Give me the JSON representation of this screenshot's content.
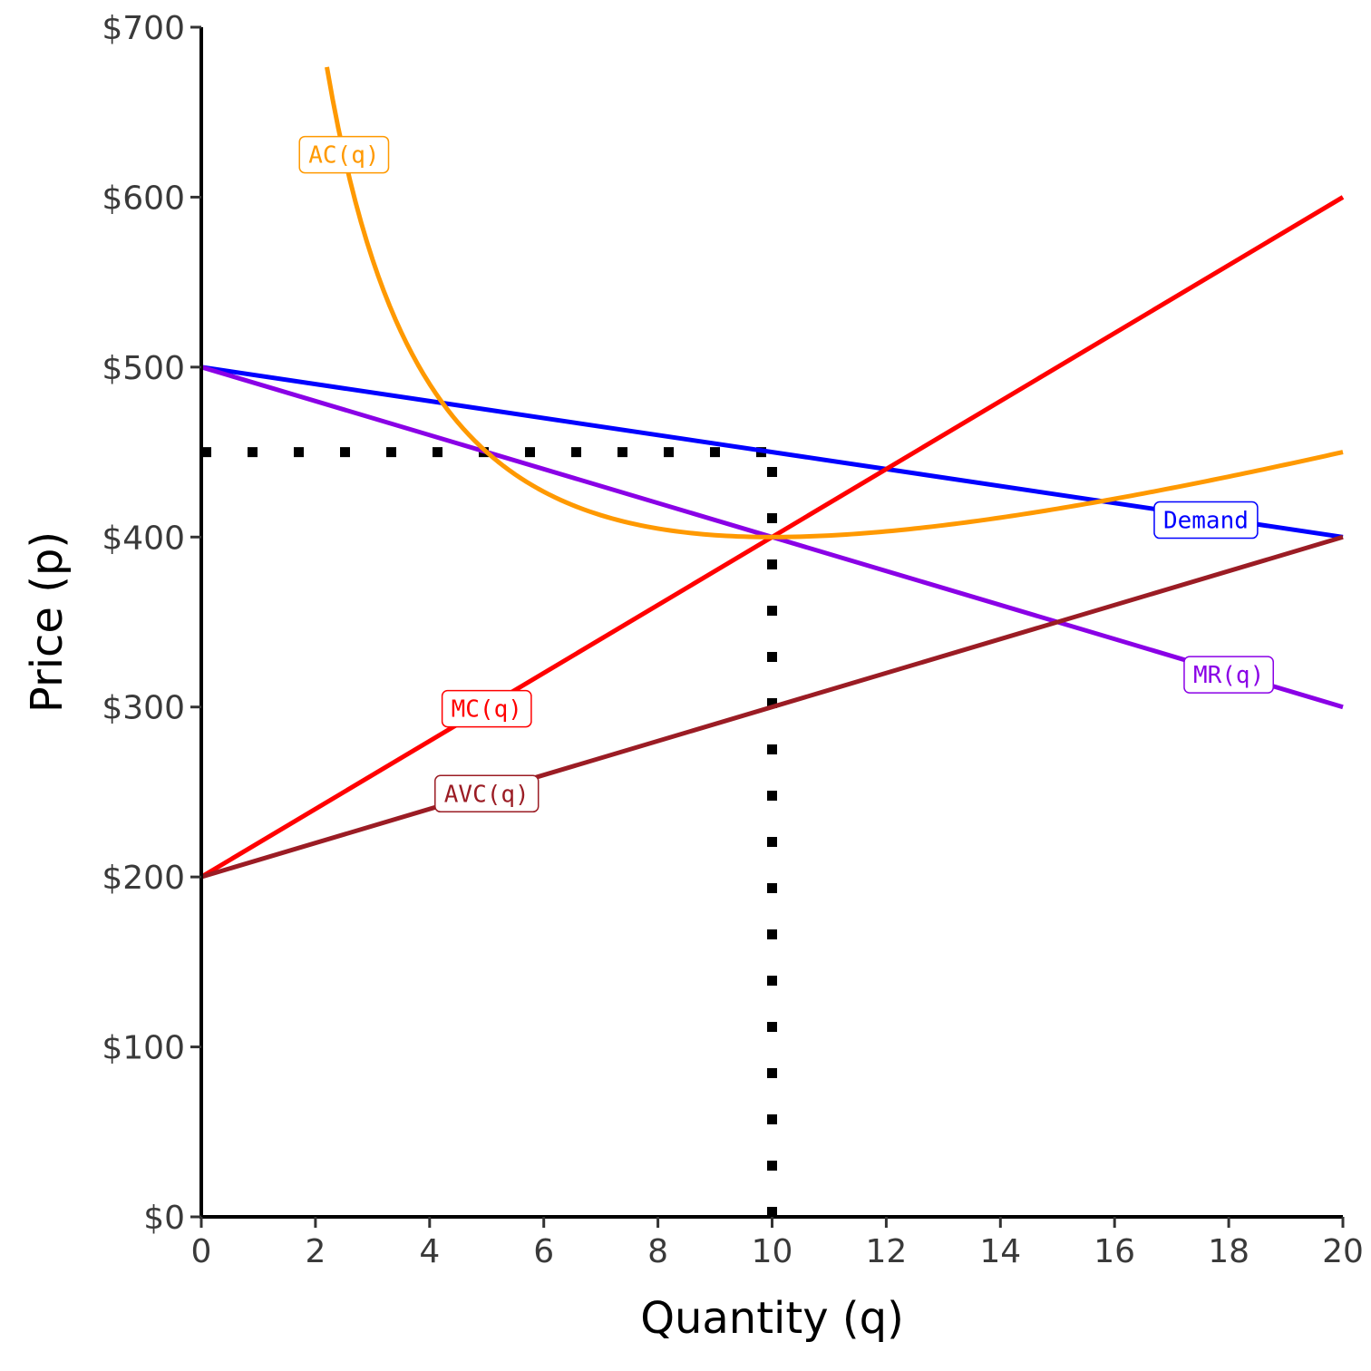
{
  "chart_data": {
    "type": "line",
    "xlabel": "Quantity (q)",
    "ylabel": "Price (p)",
    "xlim": [
      0,
      20
    ],
    "ylim": [
      0,
      700
    ],
    "x_ticks": [
      0,
      2,
      4,
      6,
      8,
      10,
      12,
      14,
      16,
      18,
      20
    ],
    "x_tick_labels": [
      "0",
      "2",
      "4",
      "6",
      "8",
      "10",
      "12",
      "14",
      "16",
      "18",
      "20"
    ],
    "y_ticks": [
      0,
      100,
      200,
      300,
      400,
      500,
      600,
      700
    ],
    "y_tick_labels": [
      "$0",
      "$100",
      "$200",
      "$300",
      "$400",
      "$500",
      "$600",
      "$700"
    ],
    "grid": false,
    "series": [
      {
        "name": "Demand",
        "color": "#0000ff",
        "x": [
          0,
          20
        ],
        "y": [
          500,
          400
        ],
        "label_at": [
          17.6,
          410
        ]
      },
      {
        "name": "MR(q)",
        "color": "#8a00e6",
        "x": [
          0,
          20
        ],
        "y": [
          500,
          300
        ],
        "label_at": [
          18,
          319
        ]
      },
      {
        "name": "MC(q)",
        "color": "#ff0000",
        "x": [
          0,
          20
        ],
        "y": [
          200,
          600
        ],
        "label_at": [
          5,
          299
        ]
      },
      {
        "name": "AVC(q)",
        "color": "#9b1c24",
        "x": [
          0,
          20
        ],
        "y": [
          200,
          400
        ],
        "label_at": [
          5,
          249
        ]
      },
      {
        "name": "AC(q)",
        "color": "#ff9900",
        "x": [
          2.2,
          2.5,
          3,
          3.5,
          4,
          4.5,
          5,
          6,
          7,
          8,
          9,
          10,
          11,
          12,
          13,
          14,
          15,
          16,
          17,
          18,
          19,
          20
        ],
        "y": [
          675.5,
          620,
          553.3,
          507.1,
          475,
          452.2,
          440,
          426.7,
          418.6,
          415,
          413.3,
          400,
          400.9,
          403.3,
          406.9,
          411.4,
          416.7,
          422.5,
          428.8,
          435.6,
          442.6,
          450
        ],
        "label_at": [
          2.5,
          625
        ]
      }
    ],
    "reference_lines": [
      {
        "kind": "horizontal",
        "y": 450,
        "x_from": 0,
        "x_to": 10,
        "style": "dotted",
        "color": "#000000"
      },
      {
        "kind": "vertical",
        "x": 10,
        "y_from": 0,
        "y_to": 450,
        "style": "dotted",
        "color": "#000000"
      }
    ]
  }
}
